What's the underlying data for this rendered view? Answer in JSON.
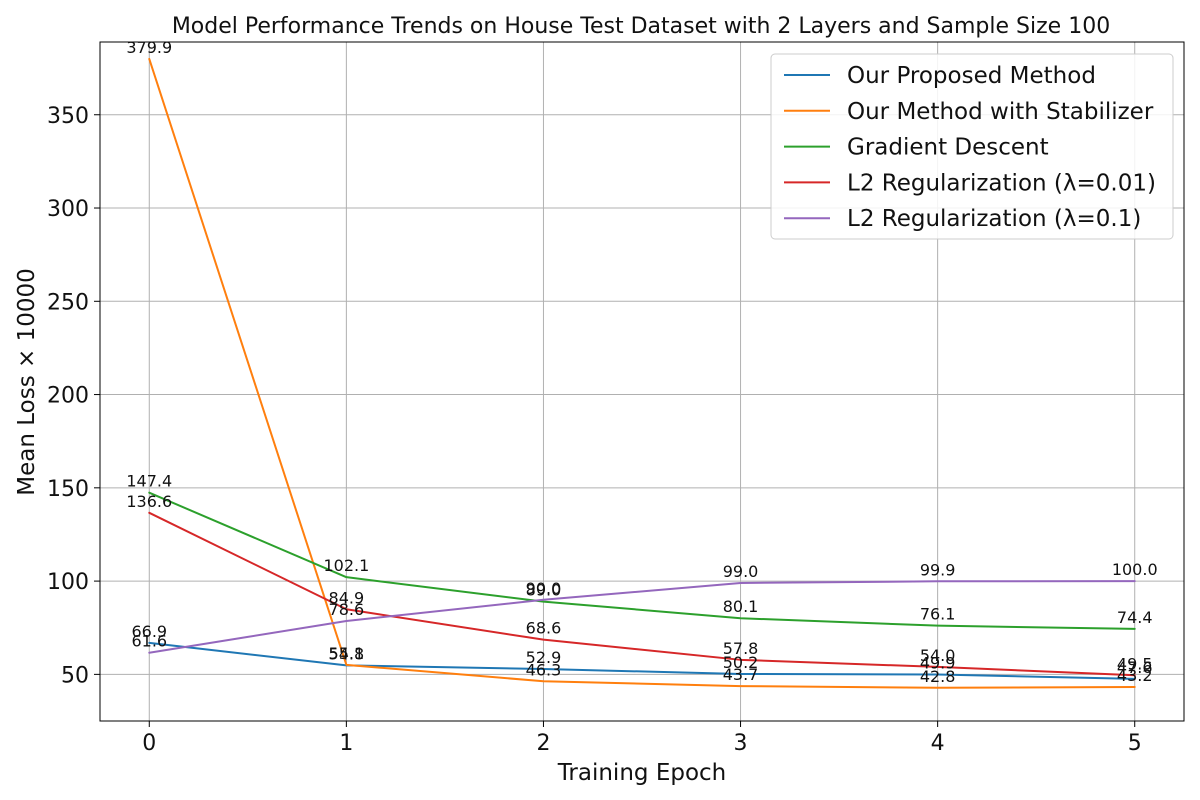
{
  "chart_data": {
    "type": "line",
    "title": "Model Performance Trends on House Test Dataset with 2 Layers and Sample Size 100",
    "xlabel": "Training Epoch",
    "ylabel": "Mean Loss × 10000",
    "x": [
      0,
      1,
      2,
      3,
      4,
      5
    ],
    "xlim": [
      -0.25,
      5.25
    ],
    "ylim": [
      25,
      389
    ],
    "xticks": [
      "0",
      "1",
      "2",
      "3",
      "4",
      "5"
    ],
    "yticks": [
      50,
      100,
      150,
      200,
      250,
      300,
      350
    ],
    "ytick_labels": [
      "50",
      "100",
      "150",
      "200",
      "250",
      "300",
      "350"
    ],
    "grid": true,
    "legend_position": "top-right",
    "series": [
      {
        "name": "Our Proposed Method",
        "color": "#1f77b4",
        "values": [
          66.9,
          54.8,
          52.9,
          50.2,
          49.9,
          47.6
        ],
        "labels": [
          "66.9",
          "54.8",
          "52.9",
          "50.2",
          "49.9",
          "47.6"
        ]
      },
      {
        "name": "Our Method with Stabilizer",
        "color": "#ff7f0e",
        "values": [
          379.9,
          55.1,
          46.3,
          43.7,
          42.8,
          43.2
        ],
        "labels": [
          "379.9",
          "55.1",
          "46.3",
          "43.7",
          "42.8",
          "43.2"
        ]
      },
      {
        "name": "Gradient Descent",
        "color": "#2ca02c",
        "values": [
          147.4,
          102.1,
          89.0,
          80.1,
          76.1,
          74.4
        ],
        "labels": [
          "147.4",
          "102.1",
          "89.0",
          "80.1",
          "76.1",
          "74.4"
        ]
      },
      {
        "name": "L2 Regularization (λ=0.01)",
        "color": "#d62728",
        "values": [
          136.6,
          84.9,
          68.6,
          57.8,
          54.0,
          49.5
        ],
        "labels": [
          "136.6",
          "84.9",
          "68.6",
          "57.8",
          "54.0",
          "49.5"
        ]
      },
      {
        "name": "L2 Regularization (λ=0.1)",
        "color": "#9467bd",
        "values": [
          61.6,
          78.6,
          90.0,
          99.0,
          99.9,
          100.0
        ],
        "labels": [
          "61.6",
          "78.6",
          "90.0",
          "99.0",
          "99.9",
          "100.0"
        ]
      }
    ]
  }
}
